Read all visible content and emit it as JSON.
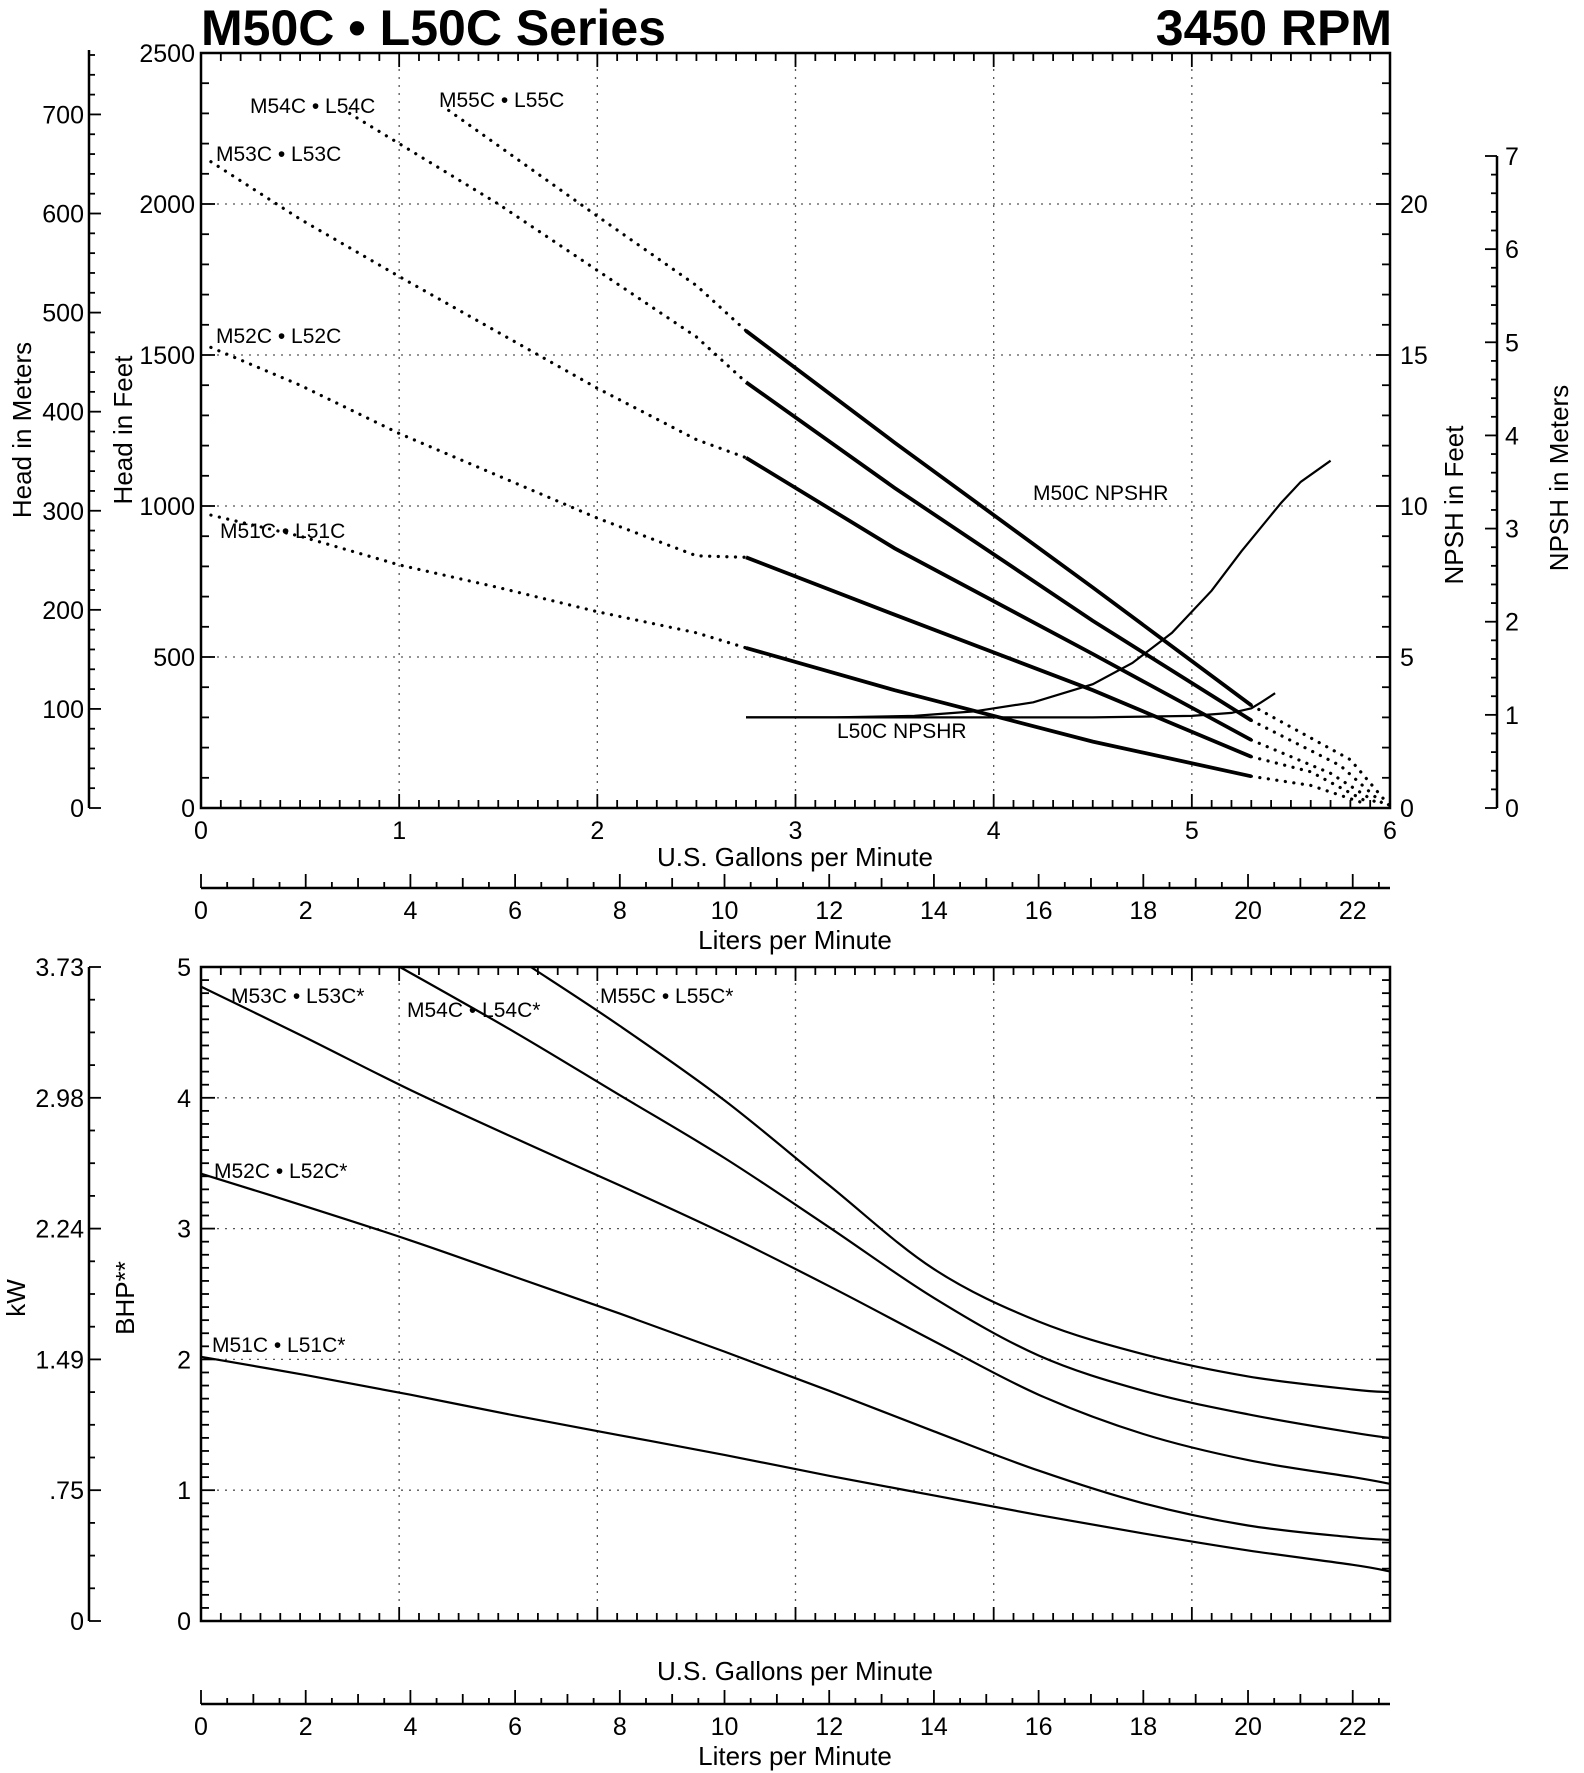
{
  "header": {
    "title": "M50C • L50C Series",
    "speed": "3450 RPM"
  },
  "chart_data": [
    {
      "type": "line",
      "chart": "head",
      "xlabel": "U.S. Gallons per Minute",
      "x2label": "Liters per Minute",
      "ylabel": "Head in Feet",
      "y2label": "Head in Meters",
      "ylabel_right": "NPSH in Feet",
      "y2label_right": "NPSH in Meters",
      "xlim": [
        0,
        6
      ],
      "ylim": [
        0,
        2500
      ],
      "npsh_ft_lim": [
        0,
        25
      ],
      "npsh_m_lim": [
        0,
        7
      ],
      "x_ticks": [
        "0",
        "1",
        "2",
        "3",
        "4",
        "5",
        "6"
      ],
      "y_ticks": [
        "0",
        "500",
        "1000",
        "1500",
        "2000",
        "2500"
      ],
      "y_meters_ticks": [
        "0",
        "100",
        "200",
        "300",
        "400",
        "500",
        "600",
        "700"
      ],
      "npsh_ft_ticks": [
        "0",
        "5",
        "10",
        "15",
        "20"
      ],
      "npsh_m_ticks": [
        "0",
        "1",
        "2",
        "3",
        "4",
        "5",
        "6",
        "7"
      ],
      "lpm_ticks": [
        "0",
        "2",
        "4",
        "6",
        "8",
        "10",
        "12",
        "14",
        "16",
        "18",
        "20",
        "22"
      ],
      "grid": true,
      "series": [
        {
          "name": "M51C • L51C",
          "x": [
            0.05,
            0.5,
            1.0,
            1.5,
            2.0,
            2.5,
            2.75,
            3.5,
            4.5,
            5.3,
            5.6,
            5.85
          ],
          "y": [
            970,
            900,
            805,
            730,
            650,
            580,
            530,
            390,
            220,
            105,
            75,
            20
          ],
          "solid_from": 2.75,
          "solid_to": 5.3
        },
        {
          "name": "M52C • L52C",
          "x": [
            0.05,
            0.5,
            1.0,
            1.5,
            2.0,
            2.5,
            2.75,
            3.5,
            4.5,
            5.3,
            5.6,
            5.9
          ],
          "y": [
            1525,
            1400,
            1240,
            1100,
            960,
            835,
            830,
            640,
            390,
            170,
            120,
            15
          ],
          "solid_from": 2.75,
          "solid_to": 5.3
        },
        {
          "name": "M53C • L53C",
          "x": [
            0.05,
            0.5,
            1.0,
            1.5,
            2.0,
            2.5,
            2.75,
            3.5,
            4.5,
            5.3,
            5.7,
            5.95
          ],
          "y": [
            2140,
            1950,
            1760,
            1575,
            1390,
            1220,
            1160,
            860,
            510,
            225,
            115,
            10
          ],
          "solid_from": 2.75,
          "solid_to": 5.3
        },
        {
          "name": "M54C • L54C",
          "x": [
            0.75,
            1.5,
            2.0,
            2.5,
            2.75,
            3.5,
            4.5,
            5.3,
            5.75,
            5.98
          ],
          "y": [
            2300,
            2000,
            1780,
            1560,
            1410,
            1060,
            620,
            290,
            140,
            5
          ],
          "solid_from": 2.75,
          "solid_to": 5.3
        },
        {
          "name": "M55C • L55C",
          "x": [
            1.25,
            2.0,
            2.5,
            2.75,
            3.5,
            4.5,
            5.3,
            5.8,
            6.0
          ],
          "y": [
            2310,
            1960,
            1730,
            1580,
            1210,
            730,
            340,
            160,
            5
          ],
          "solid_from": 2.75,
          "solid_to": 5.3
        }
      ],
      "npshr": [
        {
          "name": "M50C NPSHR",
          "x": [
            2.75,
            3.2,
            3.6,
            3.9,
            4.2,
            4.5,
            4.7,
            4.9,
            5.1,
            5.25,
            5.45,
            5.55,
            5.7
          ],
          "y": [
            3.0,
            3.0,
            3.05,
            3.2,
            3.5,
            4.1,
            4.8,
            5.8,
            7.2,
            8.5,
            10.1,
            10.8,
            11.5
          ]
        },
        {
          "name": "L50C NPSHR",
          "x": [
            2.75,
            3.5,
            4.0,
            4.5,
            5.0,
            5.2,
            5.3,
            5.35,
            5.42
          ],
          "y": [
            3.0,
            3.0,
            3.0,
            3.0,
            3.05,
            3.15,
            3.3,
            3.5,
            3.8
          ]
        }
      ]
    },
    {
      "type": "line",
      "chart": "power",
      "xlabel": "U.S. Gallons per Minute",
      "x2label": "Liters per Minute",
      "ylabel": "BHP**",
      "y2label": "kW",
      "xlim_lpm": [
        0,
        22.7
      ],
      "ylim": [
        0,
        5
      ],
      "y_ticks": [
        "0",
        "1",
        "2",
        "3",
        "4",
        "5"
      ],
      "kw_ticks": [
        "0",
        ".75",
        "1.49",
        "2.24",
        "2.98",
        "3.73"
      ],
      "lpm_ticks": [
        "0",
        "2",
        "4",
        "6",
        "8",
        "10",
        "12",
        "14",
        "16",
        "18",
        "20",
        "22"
      ],
      "grid": true,
      "series": [
        {
          "name": "M51C • L51C*",
          "x": [
            0,
            2,
            4,
            6,
            8,
            10,
            12,
            14,
            16,
            18,
            20,
            22,
            22.7
          ],
          "y": [
            2.02,
            1.88,
            1.73,
            1.57,
            1.42,
            1.27,
            1.11,
            0.96,
            0.81,
            0.67,
            0.54,
            0.43,
            0.38
          ]
        },
        {
          "name": "M52C • L52C*",
          "x": [
            0,
            2,
            4,
            6,
            8,
            10,
            12,
            14,
            16,
            18,
            20,
            22,
            22.7
          ],
          "y": [
            3.42,
            3.17,
            2.91,
            2.63,
            2.35,
            2.06,
            1.76,
            1.45,
            1.15,
            0.9,
            0.73,
            0.64,
            0.62
          ]
        },
        {
          "name": "M53C • L53C*",
          "x": [
            0,
            2,
            4,
            6,
            8,
            10,
            12,
            14,
            16,
            18,
            20,
            22,
            22.7
          ],
          "y": [
            4.85,
            4.46,
            4.06,
            3.69,
            3.33,
            2.96,
            2.56,
            2.14,
            1.73,
            1.43,
            1.23,
            1.1,
            1.05
          ]
        },
        {
          "name": "M54C • L54C*",
          "x": [
            3.8,
            6,
            8,
            10,
            12,
            14,
            16,
            18,
            20,
            22,
            22.7
          ],
          "y": [
            5.0,
            4.5,
            4.02,
            3.54,
            3.01,
            2.47,
            2.03,
            1.76,
            1.58,
            1.44,
            1.4
          ]
        },
        {
          "name": "M55C • L55C*",
          "x": [
            6.3,
            8,
            10,
            12,
            14,
            16,
            18,
            20,
            22,
            22.7
          ],
          "y": [
            5.0,
            4.55,
            3.98,
            3.33,
            2.69,
            2.29,
            2.04,
            1.87,
            1.77,
            1.75
          ]
        }
      ]
    }
  ]
}
